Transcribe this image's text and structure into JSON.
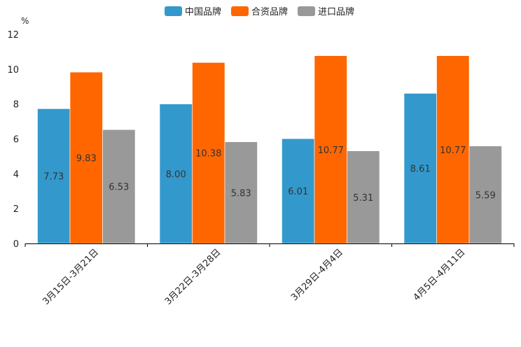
{
  "chart_data": {
    "type": "bar",
    "ylabel": "%",
    "ylim": [
      0,
      12
    ],
    "yticks": [
      0,
      2,
      4,
      6,
      8,
      10,
      12
    ],
    "grid": false,
    "legend_position": "top-center",
    "categories": [
      "3月15日-3月21日",
      "3月22日-3月28日",
      "3月29日-4月4日",
      "4月5日-4月11日"
    ],
    "series": [
      {
        "name": "中国品牌",
        "color": "#3399CC",
        "values": [
          7.73,
          8.0,
          6.01,
          8.61
        ],
        "labels": [
          "7.73",
          "8.00",
          "6.01",
          "8.61"
        ]
      },
      {
        "name": "合资品牌",
        "color": "#FF6600",
        "values": [
          9.83,
          10.38,
          10.77,
          10.77
        ],
        "labels": [
          "9.83",
          "10.38",
          "10.77",
          "10.77"
        ]
      },
      {
        "name": "进口品牌",
        "color": "#999999",
        "values": [
          6.53,
          5.83,
          5.31,
          5.59
        ],
        "labels": [
          "6.53",
          "5.83",
          "5.31",
          "5.59"
        ]
      }
    ]
  }
}
